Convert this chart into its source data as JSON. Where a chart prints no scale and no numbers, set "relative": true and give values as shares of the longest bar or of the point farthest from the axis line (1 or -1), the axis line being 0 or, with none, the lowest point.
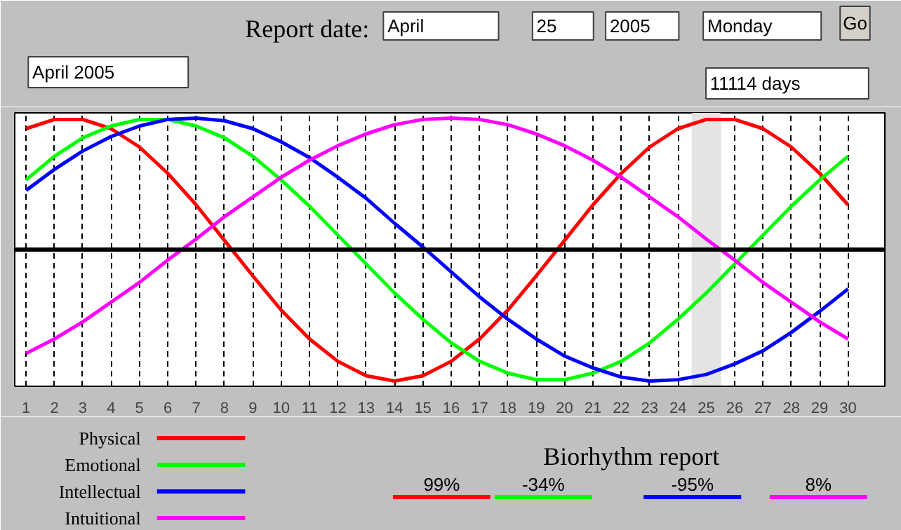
{
  "chart_data": {
    "type": "line",
    "title": "Biorhythm report",
    "relative": true,
    "grid": "x",
    "legend": "bottom left",
    "x": [
      1,
      2,
      3,
      4,
      5,
      6,
      7,
      8,
      9,
      10,
      11,
      12,
      13,
      14,
      15,
      16,
      17,
      18,
      19,
      20,
      21,
      22,
      23,
      24,
      25,
      26,
      27,
      28,
      29,
      30
    ],
    "xlim": [
      0.6,
      31.3
    ],
    "xticks": [
      1,
      2,
      3,
      4,
      5,
      6,
      7,
      8,
      9,
      10,
      11,
      12,
      13,
      14,
      15,
      16,
      17,
      18,
      19,
      20,
      21,
      22,
      23,
      24,
      25,
      26,
      27,
      28,
      29,
      30
    ],
    "series": [
      {
        "name": "Physical",
        "color": "#ff0000",
        "values": [
          0.92,
          0.99,
          0.99,
          0.92,
          0.78,
          0.58,
          0.34,
          0.07,
          -0.2,
          -0.46,
          -0.68,
          -0.85,
          -0.96,
          -1,
          -0.96,
          -0.85,
          -0.68,
          -0.46,
          -0.2,
          0.07,
          0.34,
          0.58,
          0.78,
          0.92,
          0.99,
          0.99,
          0.92,
          0.78,
          0.58,
          0.34
        ]
      },
      {
        "name": "Emotional",
        "color": "#00ff00",
        "values": [
          0.53,
          0.71,
          0.85,
          0.94,
          0.99,
          0.99,
          0.94,
          0.85,
          0.71,
          0.53,
          0.33,
          0.11,
          -0.11,
          -0.33,
          -0.53,
          -0.71,
          -0.85,
          -0.94,
          -0.99,
          -0.99,
          -0.94,
          -0.85,
          -0.71,
          -0.53,
          -0.33,
          -0.11,
          0.11,
          0.33,
          0.53,
          0.71
        ]
      },
      {
        "name": "Intellectual",
        "color": "#0000ff",
        "values": [
          0.45,
          0.61,
          0.75,
          0.86,
          0.94,
          0.99,
          1,
          0.98,
          0.92,
          0.82,
          0.7,
          0.55,
          0.39,
          0.2,
          0.02,
          -0.17,
          -0.36,
          -0.53,
          -0.68,
          -0.81,
          -0.9,
          -0.97,
          -1,
          -0.99,
          -0.95,
          -0.87,
          -0.77,
          -0.63,
          -0.47,
          -0.3
        ]
      },
      {
        "name": "Intuitional",
        "color": "#ff00ff",
        "values": [
          -0.79,
          -0.68,
          -0.55,
          -0.4,
          -0.25,
          -0.08,
          0.08,
          0.25,
          0.4,
          0.55,
          0.68,
          0.79,
          0.88,
          0.95,
          0.99,
          1,
          0.99,
          0.95,
          0.88,
          0.79,
          0.68,
          0.55,
          0.4,
          0.25,
          0.08,
          -0.08,
          -0.25,
          -0.4,
          -0.55,
          -0.68
        ]
      }
    ],
    "bands": [
      {
        "axis": "x",
        "from": 24.5,
        "to": 25.5,
        "color": "#e4e4e4"
      }
    ],
    "annotations": [
      "Report date:",
      "April",
      "25",
      "2005",
      "Monday",
      "Go",
      "April  2005",
      "11114  days",
      "99%",
      "-34%",
      "-95%",
      "8%"
    ]
  }
}
